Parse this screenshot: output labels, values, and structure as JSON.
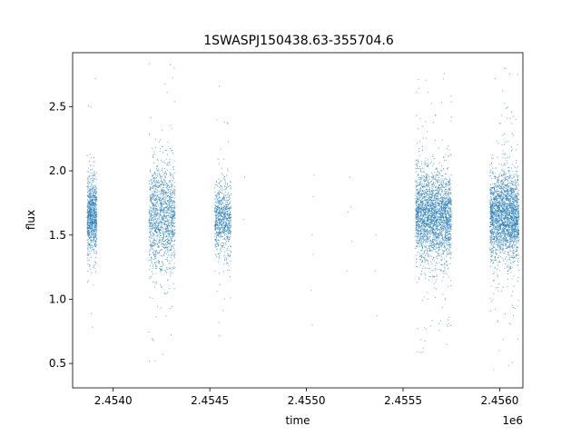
{
  "chart_data": {
    "type": "scatter",
    "title": "1SWASPJ150438.63-355704.6",
    "xlabel": "time",
    "ylabel": "flux",
    "x_offset_label": "1e6",
    "xlim": [
      2453790,
      2456120
    ],
    "ylim": [
      0.31,
      2.92
    ],
    "x_ticks": [
      2454000,
      2454500,
      2455000,
      2455500,
      2456000
    ],
    "x_tick_labels": [
      "2.4540",
      "2.4545",
      "2.4550",
      "2.4555",
      "2.4560"
    ],
    "y_ticks": [
      0.5,
      1.0,
      1.5,
      2.0,
      2.5
    ],
    "y_tick_labels": [
      "0.5",
      "1.0",
      "1.5",
      "2.0",
      "2.5"
    ],
    "grid": false,
    "marker_color": "#1f77b4",
    "clusters": [
      {
        "x_range": [
          2453865,
          2453915
        ],
        "median_flux": 1.65,
        "spread": 0.14,
        "outlier_range": [
          0.42,
          2.75
        ],
        "approx_points": 900
      },
      {
        "x_range": [
          2454185,
          2454320
        ],
        "median_flux": 1.65,
        "spread": 0.2,
        "outlier_range": [
          0.42,
          2.85
        ],
        "approx_points": 1400
      },
      {
        "x_range": [
          2454525,
          2454610
        ],
        "median_flux": 1.62,
        "spread": 0.13,
        "outlier_range": [
          0.62,
          2.82
        ],
        "approx_points": 800
      },
      {
        "x_range": [
          2455565,
          2455750
        ],
        "median_flux": 1.65,
        "spread": 0.17,
        "outlier_range": [
          0.55,
          2.85
        ],
        "approx_points": 2600
      },
      {
        "x_range": [
          2455950,
          2456100
        ],
        "median_flux": 1.65,
        "spread": 0.16,
        "outlier_range": [
          0.42,
          2.8
        ],
        "approx_points": 2400
      }
    ],
    "sparse_points": [
      {
        "x": 2454680,
        "y": 1.95
      },
      {
        "x": 2454675,
        "y": 1.62
      },
      {
        "x": 2455040,
        "y": 1.97
      },
      {
        "x": 2455035,
        "y": 1.8
      },
      {
        "x": 2455030,
        "y": 1.5
      },
      {
        "x": 2455035,
        "y": 1.35
      },
      {
        "x": 2455025,
        "y": 1.07
      },
      {
        "x": 2455030,
        "y": 0.8
      },
      {
        "x": 2455225,
        "y": 1.95
      },
      {
        "x": 2455230,
        "y": 1.72
      },
      {
        "x": 2455215,
        "y": 1.68
      },
      {
        "x": 2455235,
        "y": 1.45
      },
      {
        "x": 2455210,
        "y": 1.22
      },
      {
        "x": 2455360,
        "y": 1.5
      },
      {
        "x": 2455355,
        "y": 1.22
      },
      {
        "x": 2455365,
        "y": 0.87
      }
    ]
  }
}
